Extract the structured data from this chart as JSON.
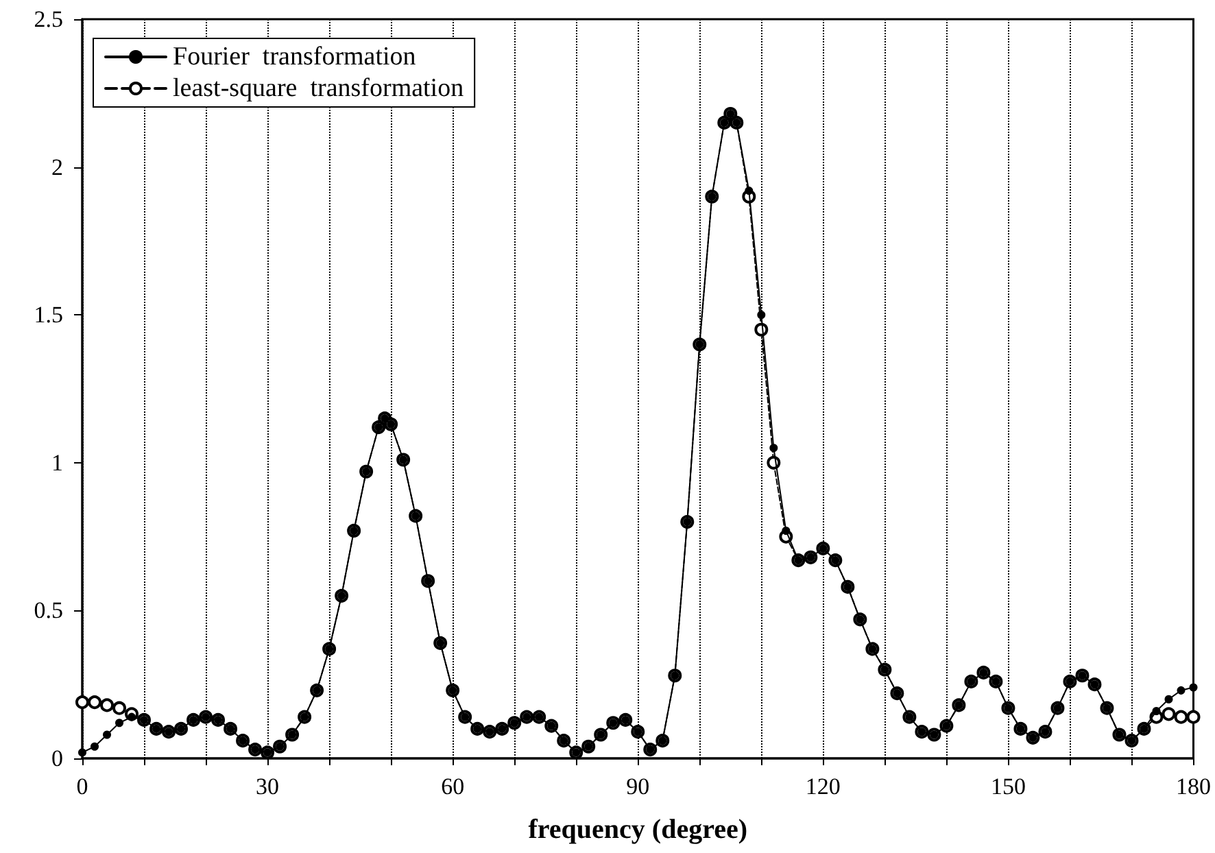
{
  "chart_data": {
    "type": "line",
    "xlabel": "frequency (degree)",
    "x": [
      0,
      2,
      4,
      6,
      8,
      10,
      12,
      14,
      16,
      18,
      20,
      22,
      24,
      26,
      28,
      30,
      32,
      34,
      36,
      38,
      40,
      42,
      44,
      46,
      48,
      49,
      50,
      52,
      54,
      56,
      58,
      60,
      62,
      64,
      66,
      68,
      70,
      72,
      74,
      76,
      78,
      80,
      82,
      84,
      86,
      88,
      90,
      92,
      94,
      96,
      98,
      100,
      102,
      104,
      105,
      106,
      108,
      110,
      112,
      114,
      116,
      118,
      120,
      122,
      124,
      126,
      128,
      130,
      132,
      134,
      136,
      138,
      140,
      142,
      144,
      146,
      148,
      150,
      152,
      154,
      156,
      158,
      160,
      162,
      164,
      166,
      168,
      170,
      172,
      174,
      176,
      178,
      180
    ],
    "series": [
      {
        "name": "Fourier  transformation",
        "color": "#000000",
        "marker": "circle",
        "line_style": "solid",
        "values": [
          0.02,
          0.04,
          0.08,
          0.12,
          0.14,
          0.13,
          0.1,
          0.09,
          0.1,
          0.13,
          0.14,
          0.13,
          0.1,
          0.06,
          0.03,
          0.02,
          0.04,
          0.08,
          0.14,
          0.23,
          0.37,
          0.55,
          0.77,
          0.97,
          1.12,
          1.15,
          1.13,
          1.01,
          0.82,
          0.6,
          0.39,
          0.23,
          0.14,
          0.1,
          0.09,
          0.1,
          0.12,
          0.14,
          0.14,
          0.11,
          0.06,
          0.02,
          0.04,
          0.08,
          0.12,
          0.13,
          0.09,
          0.03,
          0.06,
          0.28,
          0.8,
          1.4,
          1.9,
          2.15,
          2.18,
          2.15,
          1.92,
          1.5,
          1.05,
          0.77,
          0.67,
          0.68,
          0.71,
          0.67,
          0.58,
          0.47,
          0.37,
          0.3,
          0.22,
          0.14,
          0.09,
          0.08,
          0.11,
          0.18,
          0.26,
          0.29,
          0.26,
          0.17,
          0.1,
          0.07,
          0.09,
          0.17,
          0.26,
          0.28,
          0.25,
          0.17,
          0.08,
          0.06,
          0.1,
          0.16,
          0.2,
          0.23,
          0.24
        ]
      },
      {
        "name": "least-square  transformation",
        "color": "#000000",
        "marker": "circle",
        "line_style": "dashed",
        "values": [
          0.19,
          0.19,
          0.18,
          0.17,
          0.15,
          0.13,
          0.1,
          0.09,
          0.1,
          0.13,
          0.14,
          0.13,
          0.1,
          0.06,
          0.03,
          0.02,
          0.04,
          0.08,
          0.14,
          0.23,
          0.37,
          0.55,
          0.77,
          0.97,
          1.12,
          1.15,
          1.13,
          1.01,
          0.82,
          0.6,
          0.39,
          0.23,
          0.14,
          0.1,
          0.09,
          0.1,
          0.12,
          0.14,
          0.14,
          0.11,
          0.06,
          0.02,
          0.04,
          0.08,
          0.12,
          0.13,
          0.09,
          0.03,
          0.06,
          0.28,
          0.8,
          1.4,
          1.9,
          2.15,
          2.18,
          2.15,
          1.9,
          1.45,
          1.0,
          0.75,
          0.67,
          0.68,
          0.71,
          0.67,
          0.58,
          0.47,
          0.37,
          0.3,
          0.22,
          0.14,
          0.09,
          0.08,
          0.11,
          0.18,
          0.26,
          0.29,
          0.26,
          0.17,
          0.1,
          0.07,
          0.09,
          0.17,
          0.26,
          0.28,
          0.25,
          0.17,
          0.08,
          0.06,
          0.1,
          0.14,
          0.15,
          0.14,
          0.14
        ]
      }
    ],
    "xlim": [
      0,
      180
    ],
    "xticks": [
      0,
      {
        "value": 10,
        "label": null
      },
      {
        "value": 20,
        "label": null
      },
      30,
      {
        "value": 40,
        "label": null
      },
      {
        "value": 50,
        "label": null
      },
      60,
      {
        "value": 70,
        "label": null
      },
      {
        "value": 80,
        "label": null
      },
      90,
      {
        "value": 100,
        "label": null
      },
      {
        "value": 110,
        "label": null
      },
      120,
      {
        "value": 130,
        "label": null
      },
      {
        "value": 140,
        "label": null
      },
      150,
      {
        "value": 160,
        "label": null
      },
      {
        "value": 170,
        "label": null
      },
      180
    ],
    "ylim": [
      0,
      2.5
    ],
    "yticks": [
      0,
      0.5,
      1,
      1.5,
      2,
      2.5
    ],
    "grid": "x",
    "legend": "top left"
  }
}
